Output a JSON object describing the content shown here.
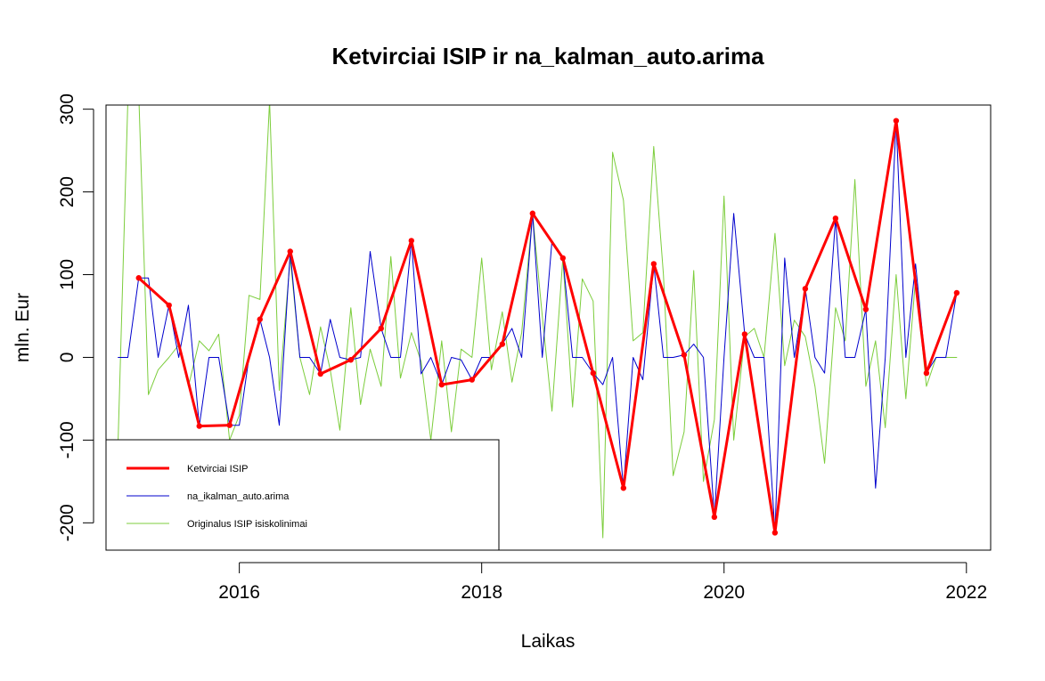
{
  "chart_data": {
    "type": "line",
    "title": "Ketvirciai ISIP ir na_kalman_auto.arima",
    "xlabel": "Laikas",
    "ylabel": "mln. Eur",
    "xlim": [
      2014.9,
      2022.2
    ],
    "ylim": [
      -233,
      305
    ],
    "xticks": [
      2016,
      2018,
      2020,
      2022
    ],
    "yticks": [
      -200,
      -100,
      0,
      100,
      200,
      300
    ],
    "legend_position": "bottom-left",
    "series": [
      {
        "name": "Ketvirciai ISIP",
        "color": "#ff0000",
        "width": 3,
        "markers": true,
        "x": [
          2015.17,
          2015.42,
          2015.67,
          2015.92,
          2016.17,
          2016.42,
          2016.67,
          2016.92,
          2017.17,
          2017.42,
          2017.67,
          2017.92,
          2018.17,
          2018.42,
          2018.67,
          2018.92,
          2019.17,
          2019.42,
          2019.67,
          2019.92,
          2020.17,
          2020.42,
          2020.67,
          2020.92,
          2021.17,
          2021.42,
          2021.67,
          2021.92
        ],
        "values": [
          96,
          63,
          -83,
          -82,
          46,
          128,
          -20,
          -3,
          35,
          141,
          -33,
          -27,
          16,
          174,
          120,
          -19,
          -158,
          113,
          3,
          -193,
          28,
          -212,
          83,
          168,
          58,
          286,
          -19,
          78
        ]
      },
      {
        "name": "na_ikalman_auto.arima",
        "color": "#0000cd",
        "width": 1,
        "markers": false,
        "x": [
          2015.0,
          2015.08,
          2015.17,
          2015.25,
          2015.33,
          2015.42,
          2015.5,
          2015.58,
          2015.67,
          2015.75,
          2015.83,
          2015.92,
          2016.0,
          2016.08,
          2016.17,
          2016.25,
          2016.33,
          2016.42,
          2016.5,
          2016.58,
          2016.67,
          2016.75,
          2016.83,
          2016.92,
          2017.0,
          2017.08,
          2017.17,
          2017.25,
          2017.33,
          2017.42,
          2017.5,
          2017.58,
          2017.67,
          2017.75,
          2017.83,
          2017.92,
          2018.0,
          2018.08,
          2018.17,
          2018.25,
          2018.33,
          2018.42,
          2018.5,
          2018.58,
          2018.67,
          2018.75,
          2018.83,
          2018.92,
          2019.0,
          2019.08,
          2019.17,
          2019.25,
          2019.33,
          2019.42,
          2019.5,
          2019.58,
          2019.67,
          2019.75,
          2019.83,
          2019.92,
          2020.0,
          2020.08,
          2020.17,
          2020.25,
          2020.33,
          2020.42,
          2020.5,
          2020.58,
          2020.67,
          2020.75,
          2020.83,
          2020.92,
          2021.0,
          2021.08,
          2021.17,
          2021.25,
          2021.33,
          2021.42,
          2021.5,
          2021.58,
          2021.67,
          2021.75,
          2021.83,
          2021.92
        ],
        "values": [
          0,
          0,
          96,
          96,
          0,
          63,
          0,
          63,
          -83,
          0,
          0,
          -82,
          -82,
          0,
          46,
          0,
          -82,
          128,
          0,
          0,
          -20,
          46,
          0,
          -3,
          0,
          128,
          35,
          0,
          0,
          141,
          -20,
          0,
          -33,
          0,
          -3,
          -27,
          0,
          0,
          16,
          35,
          0,
          174,
          0,
          141,
          120,
          0,
          0,
          -19,
          -33,
          0,
          -158,
          0,
          -27,
          113,
          0,
          0,
          3,
          16,
          0,
          -193,
          0,
          174,
          28,
          0,
          0,
          -212,
          120,
          0,
          83,
          0,
          -19,
          168,
          0,
          0,
          58,
          -158,
          0,
          286,
          0,
          113,
          -19,
          0,
          0,
          78
        ]
      },
      {
        "name": "Originalus ISIP isiskolinimai",
        "color": "#7ccd3c",
        "width": 1,
        "markers": false,
        "x": [
          2015.0,
          2015.08,
          2015.17,
          2015.25,
          2015.33,
          2015.42,
          2015.5,
          2015.58,
          2015.67,
          2015.75,
          2015.83,
          2015.92,
          2016.0,
          2016.08,
          2016.17,
          2016.25,
          2016.33,
          2016.42,
          2016.5,
          2016.58,
          2016.67,
          2016.75,
          2016.83,
          2016.92,
          2017.0,
          2017.08,
          2017.17,
          2017.25,
          2017.33,
          2017.42,
          2017.5,
          2017.58,
          2017.67,
          2017.75,
          2017.83,
          2017.92,
          2018.0,
          2018.08,
          2018.17,
          2018.25,
          2018.33,
          2018.42,
          2018.5,
          2018.58,
          2018.67,
          2018.75,
          2018.83,
          2018.92,
          2019.0,
          2019.08,
          2019.17,
          2019.25,
          2019.33,
          2019.42,
          2019.5,
          2019.58,
          2019.67,
          2019.75,
          2019.83,
          2019.92,
          2020.0,
          2020.08,
          2020.17,
          2020.25,
          2020.33,
          2020.42,
          2020.5,
          2020.58,
          2020.67,
          2020.75,
          2020.83,
          2020.92,
          2021.0,
          2021.08,
          2021.17,
          2021.25,
          2021.33,
          2021.42,
          2021.5,
          2021.58,
          2021.67,
          2021.75,
          2021.83,
          2021.92
        ],
        "values": [
          -100,
          310,
          320,
          -45,
          -15,
          0,
          15,
          -35,
          20,
          8,
          28,
          -100,
          -70,
          75,
          70,
          310,
          -40,
          120,
          0,
          -45,
          37,
          -15,
          -88,
          60,
          -57,
          10,
          -35,
          122,
          -25,
          30,
          -5,
          -100,
          20,
          -90,
          10,
          0,
          120,
          -15,
          55,
          -30,
          30,
          174,
          50,
          -65,
          120,
          -60,
          95,
          68,
          -218,
          248,
          190,
          20,
          30,
          255,
          100,
          -143,
          -90,
          105,
          -150,
          -75,
          195,
          -100,
          25,
          35,
          0,
          150,
          -10,
          45,
          25,
          -35,
          -128,
          60,
          20,
          215,
          -35,
          20,
          -85,
          100,
          -50,
          95,
          -35,
          0,
          0,
          0
        ]
      }
    ]
  }
}
